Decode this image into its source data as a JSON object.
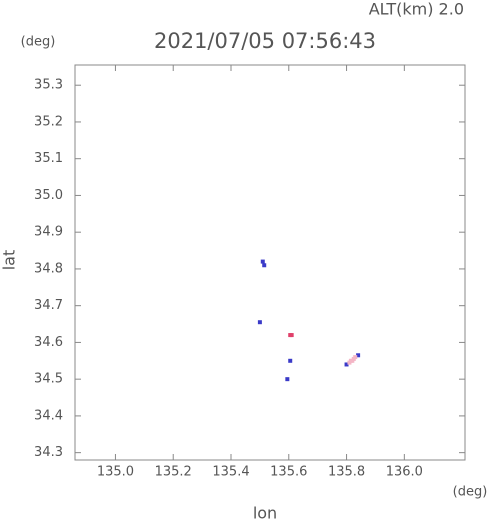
{
  "chart_data": {
    "type": "scatter",
    "annotation": "ALT(km) 2.0",
    "title": "2021/07/05 07:56:43",
    "y_unit": "(deg)",
    "x_unit": "(deg)",
    "x_label": "lon",
    "y_label": "lat",
    "xlim": [
      134.86,
      136.21
    ],
    "ylim": [
      34.28,
      35.355
    ],
    "xticks": [
      {
        "value": 135.0,
        "label": "135.0"
      },
      135.2,
      135.4,
      135.6,
      135.8,
      {
        "value": 136.0,
        "label": "136.0"
      }
    ],
    "yticks": [
      35.3,
      35.2,
      35.1,
      {
        "value": 35.0,
        "label": "35.0"
      },
      34.9,
      34.8,
      34.7,
      34.6,
      34.5,
      34.4,
      34.3
    ],
    "series": [
      {
        "color": "#3a3ac8",
        "x": [
          135.51,
          135.515,
          135.5,
          135.605,
          135.595,
          135.8,
          135.84
        ],
        "y": [
          34.82,
          34.81,
          34.655,
          34.55,
          34.5,
          34.54,
          34.565
        ]
      },
      {
        "color": "#e0406a",
        "x": [
          135.61,
          135.605
        ],
        "y": [
          34.62,
          34.62
        ]
      },
      {
        "color": "#f4b6c6",
        "x": [
          135.82,
          135.83,
          135.81,
          135.825,
          135.815
        ],
        "y": [
          34.55,
          34.56,
          34.545,
          34.555,
          34.55
        ]
      }
    ]
  }
}
